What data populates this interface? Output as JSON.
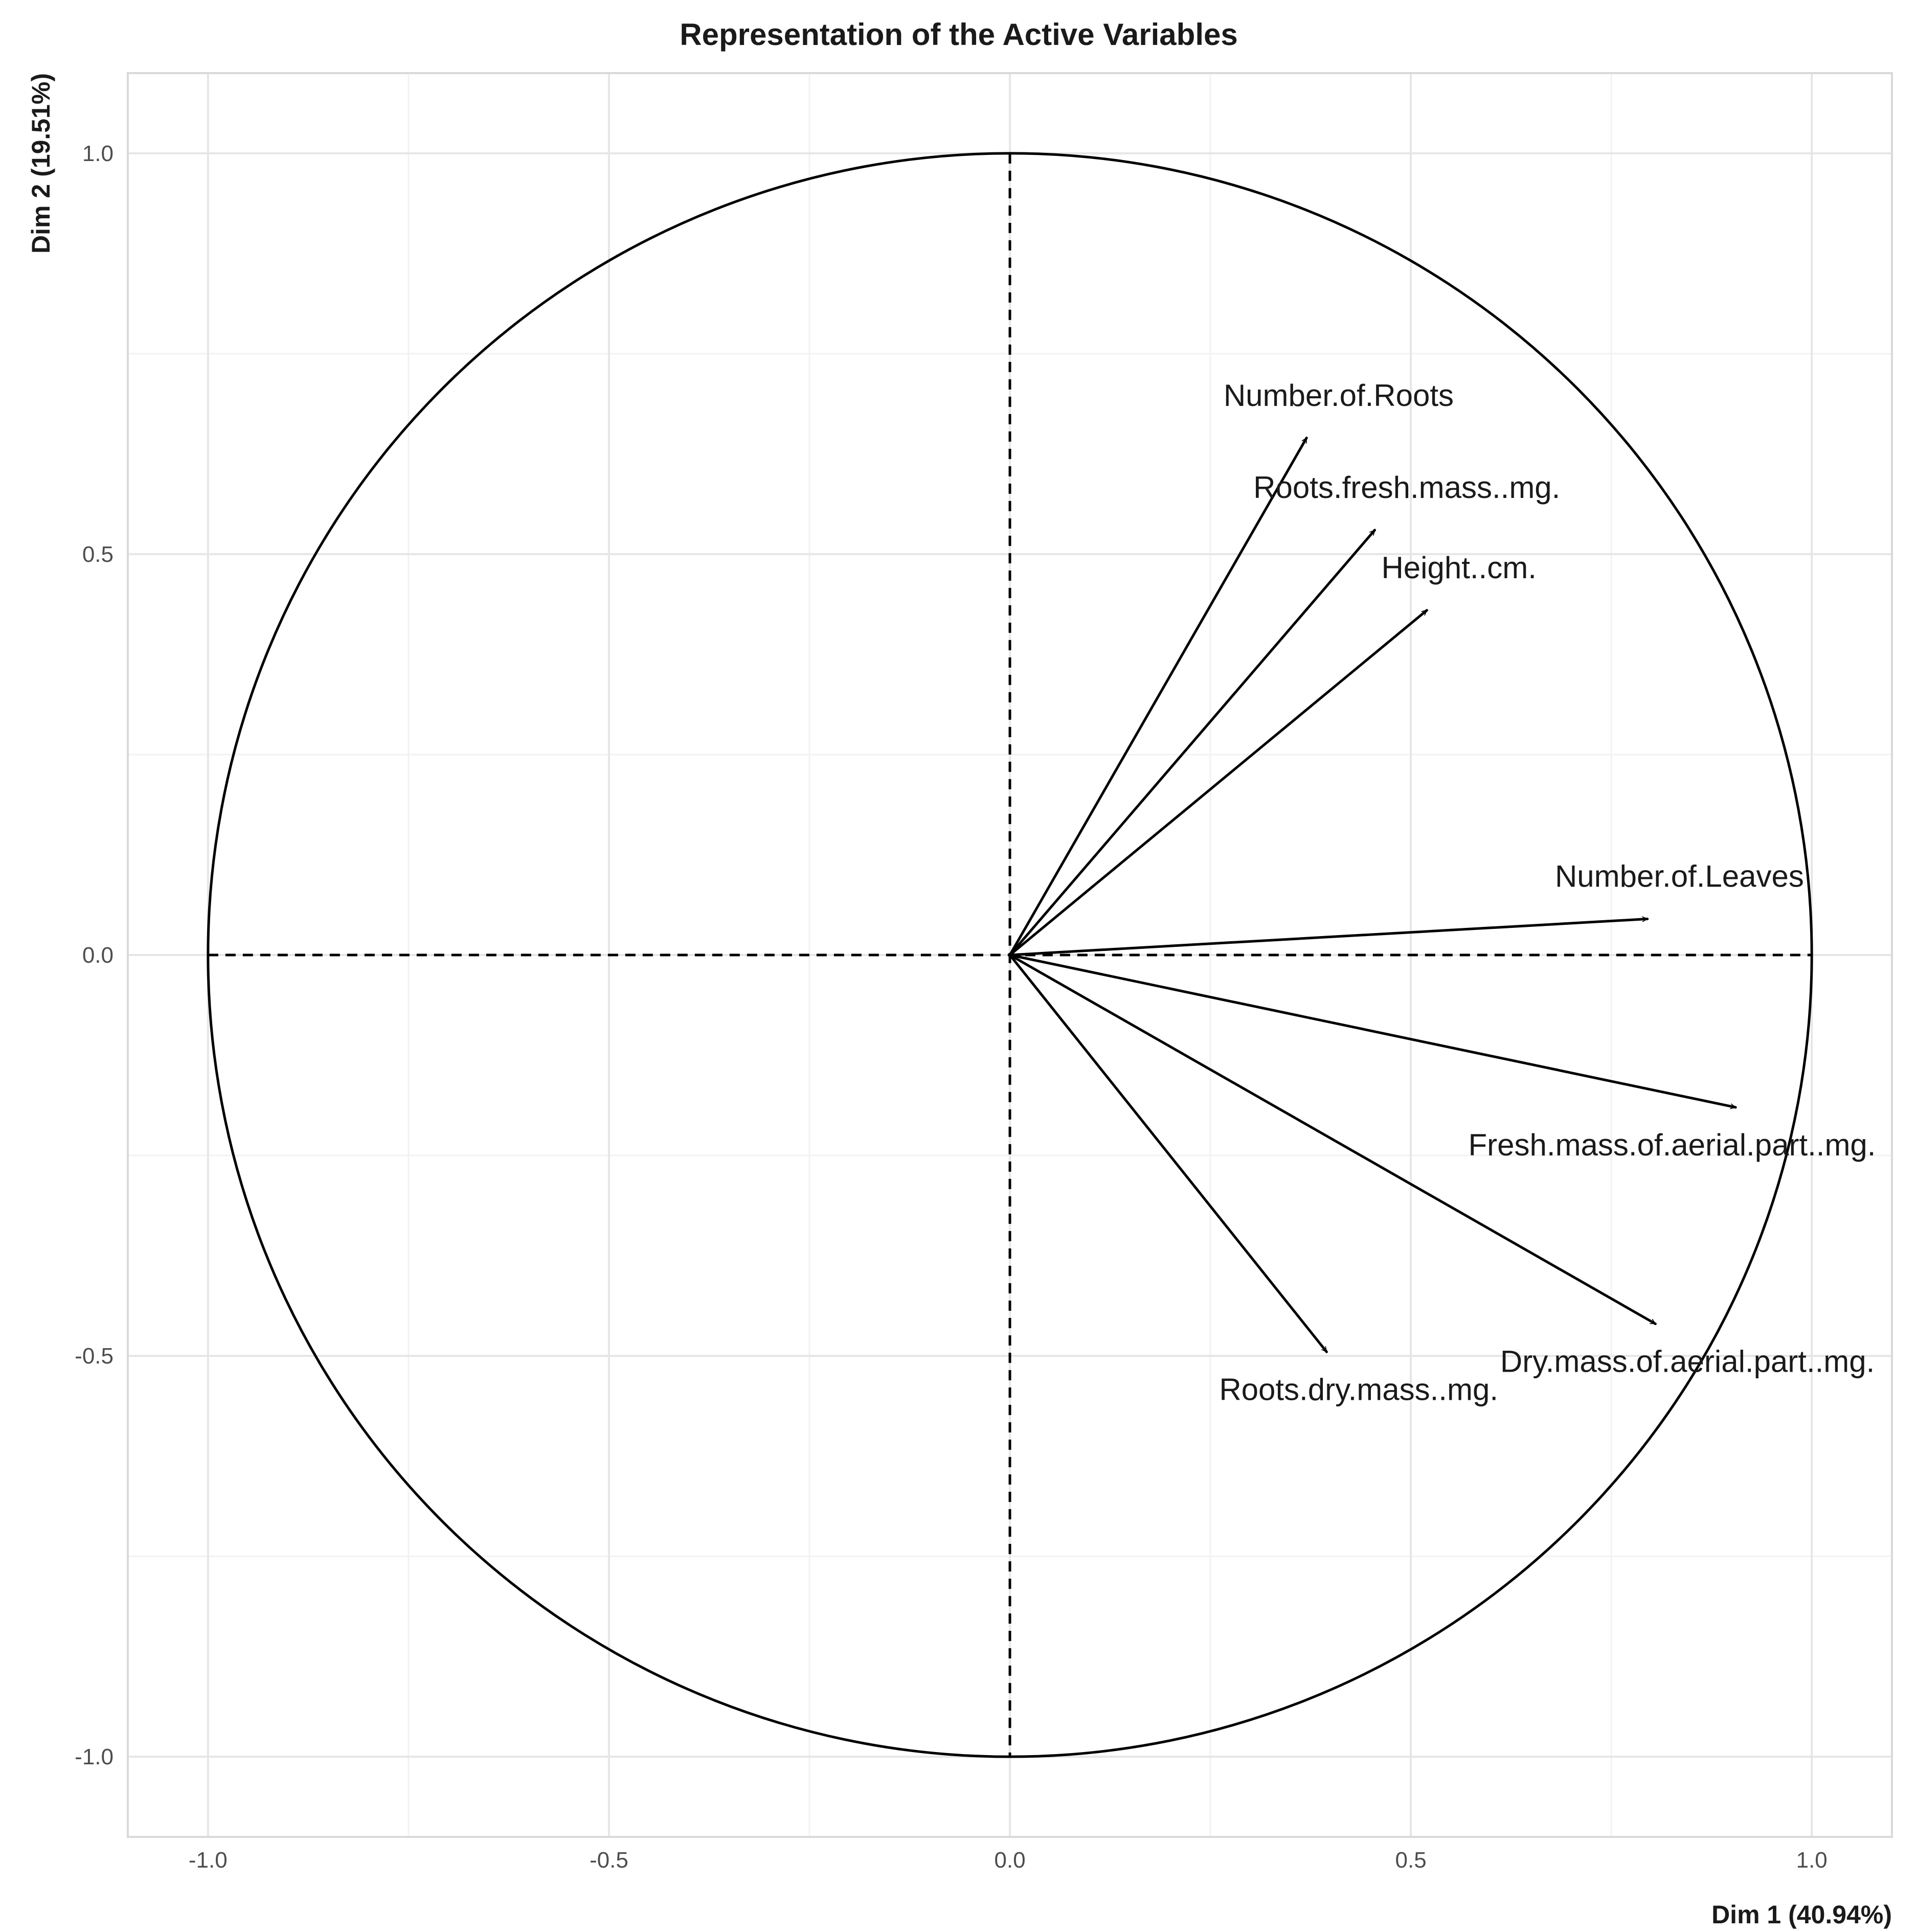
{
  "chart_data": {
    "type": "scatter",
    "subtype": "pca-correlation-circle",
    "title": "Representation of the Active Variables",
    "xlabel": "Dim 1 (40.94%)",
    "ylabel": "Dim 2 (19.51%)",
    "xlim": [
      -1.1,
      1.1
    ],
    "ylim": [
      -1.1,
      1.1
    ],
    "x_ticks": [
      -1.0,
      -0.5,
      0.0,
      0.5,
      1.0
    ],
    "y_ticks": [
      -1.0,
      -0.5,
      0.0,
      0.5,
      1.0
    ],
    "x_tick_labels": [
      "-1.0",
      "-0.5",
      "0.0",
      "0.5",
      "1.0"
    ],
    "y_tick_labels": [
      "-1.0",
      "-0.5",
      "0.0",
      "0.5",
      "1.0"
    ],
    "grid": true,
    "unit_circle": true,
    "variables": [
      {
        "name": "Number.of.Roots",
        "x": 0.37,
        "y": 0.645
      },
      {
        "name": "Roots.fresh.mass..mg.",
        "x": 0.455,
        "y": 0.53
      },
      {
        "name": "Height..cm.",
        "x": 0.52,
        "y": 0.43
      },
      {
        "name": "Number.of.Leaves",
        "x": 0.795,
        "y": 0.045
      },
      {
        "name": "Fresh.mass.of.aerial.part..mg.",
        "x": 0.905,
        "y": -0.19
      },
      {
        "name": "Dry.mass.of.aerial.part..mg.",
        "x": 0.805,
        "y": -0.46
      },
      {
        "name": "Roots.dry.mass..mg.",
        "x": 0.395,
        "y": -0.495
      }
    ]
  }
}
